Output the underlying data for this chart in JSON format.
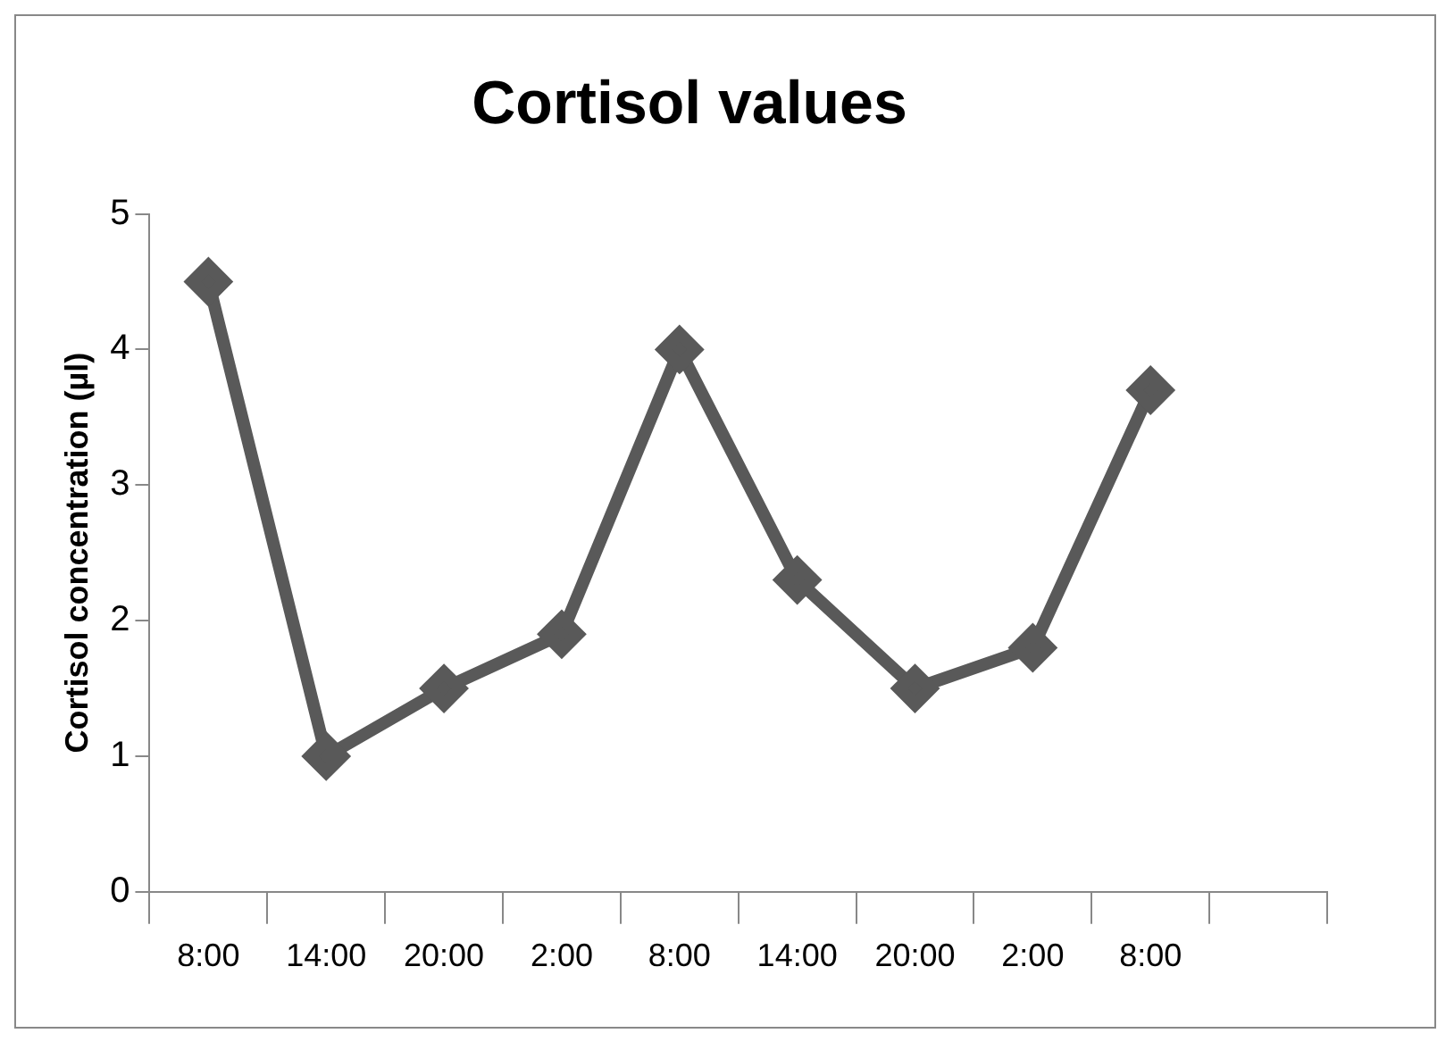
{
  "chart_data": {
    "type": "line",
    "title": "Cortisol values",
    "ylabel": "Cortisol concentration (µl)",
    "categories": [
      "8:00",
      "14:00",
      "20:00",
      "2:00",
      "8:00",
      "14:00",
      "20:00",
      "2:00",
      "8:00",
      null
    ],
    "series": [
      {
        "color": "#595959",
        "values": [
          4.5,
          1.0,
          1.5,
          1.9,
          4.0,
          2.3,
          1.5,
          1.8,
          3.7,
          null
        ]
      }
    ],
    "ylim": [
      0,
      5
    ],
    "yticks": [
      0,
      1,
      2,
      3,
      4,
      5
    ],
    "grid": false,
    "legend": false,
    "marker": "diamond",
    "line_style": "solid"
  }
}
